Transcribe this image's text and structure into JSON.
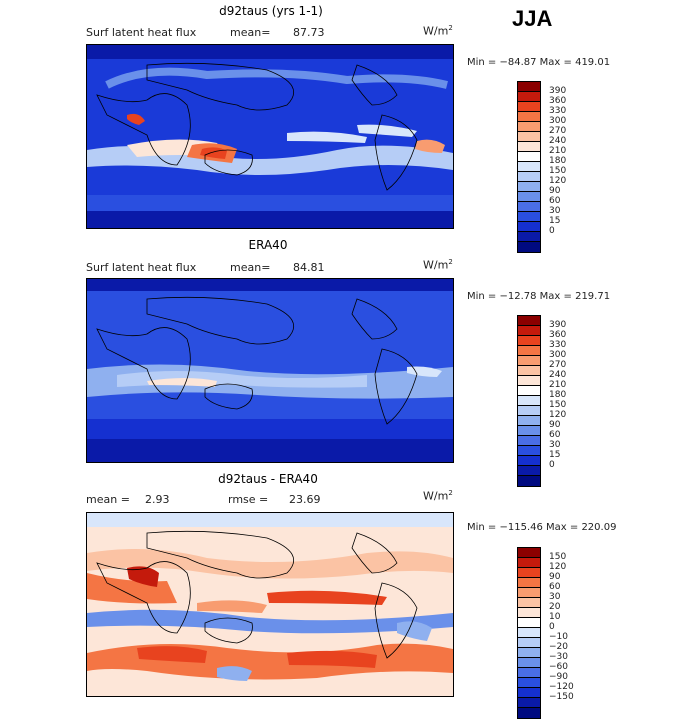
{
  "season": "JJA",
  "colors": {
    "panels12": [
      "#8b0000",
      "#c41a0c",
      "#e8431f",
      "#f47544",
      "#f89c70",
      "#fbc3a4",
      "#fde6d8",
      "#ffffff",
      "#d8e6fb",
      "#b6cdf6",
      "#8fb0ef",
      "#6a90ea",
      "#4a6ee6",
      "#2a4fe0",
      "#1530d0",
      "#0a1aa8",
      "#000a80"
    ],
    "diff": [
      "#8b0000",
      "#c41a0c",
      "#e8431f",
      "#f47544",
      "#f89c70",
      "#fbc3a4",
      "#fde6d8",
      "#ffffff",
      "#d8e6fb",
      "#b6cdf6",
      "#8fb0ef",
      "#6a90ea",
      "#4a6ee6",
      "#2a4fe0",
      "#1530d0",
      "#0a1aa8",
      "#000a80"
    ]
  },
  "panels": [
    {
      "title": "d92taus (yrs 1-1)",
      "left_label": "Surf latent heat flux",
      "mean_label": "mean=",
      "mean_value": "87.73",
      "units": "W/m",
      "units_exp": "2",
      "minmax": "Min = −84.87 Max = 419.01",
      "levels": [
        "390",
        "360",
        "330",
        "300",
        "270",
        "240",
        "210",
        "180",
        "150",
        "120",
        "90",
        "60",
        "30",
        "15",
        "0"
      ]
    },
    {
      "title": "ERA40",
      "left_label": "Surf latent heat flux",
      "mean_label": "mean=",
      "mean_value": "84.81",
      "units": "W/m",
      "units_exp": "2",
      "minmax": "Min = −12.78 Max = 219.71",
      "levels": [
        "390",
        "360",
        "330",
        "300",
        "270",
        "240",
        "210",
        "180",
        "150",
        "120",
        "90",
        "60",
        "30",
        "15",
        "0"
      ]
    },
    {
      "title": "d92taus - ERA40",
      "left_label": "mean =",
      "mean_label": "",
      "mean_value": "2.93",
      "rmse_label": "rmse =",
      "rmse_value": "23.69",
      "units": "W/m",
      "units_exp": "2",
      "minmax": "Min = −115.46 Max = 220.09",
      "levels": [
        "150",
        "120",
        "90",
        "60",
        "30",
        "20",
        "10",
        "0",
        "−10",
        "−20",
        "−30",
        "−60",
        "−90",
        "−120",
        "−150"
      ]
    }
  ]
}
